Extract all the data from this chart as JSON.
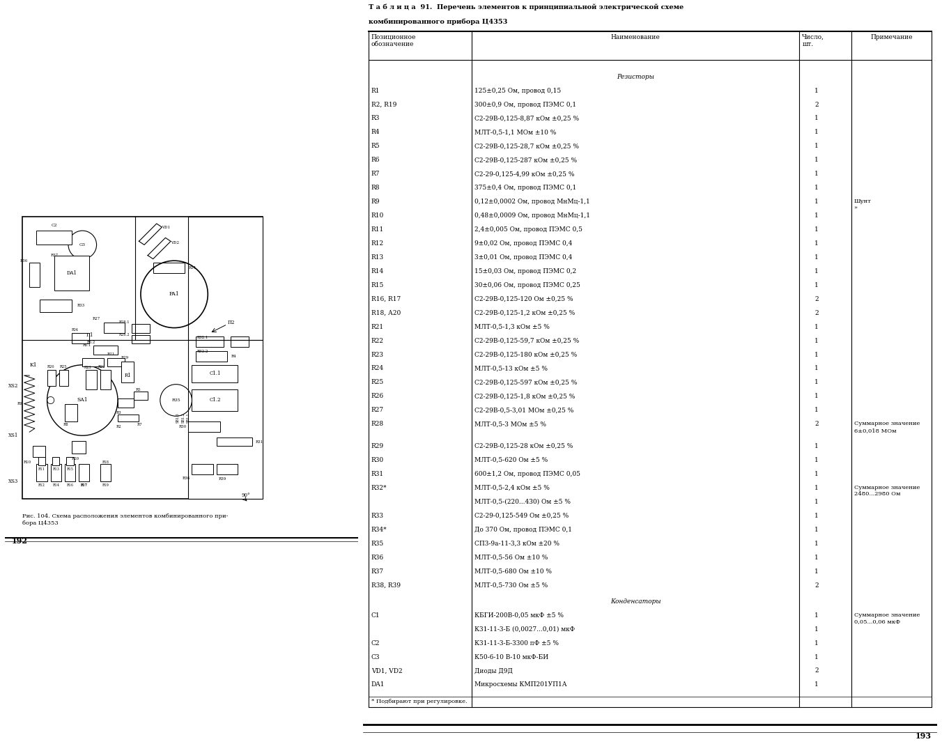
{
  "bg_color": "#ffffff",
  "title_line1": "Т а б л и ц а  91.  Перечень элементов к принципиальной электрической схеме",
  "title_line2": "комбинированного прибора Ц4353",
  "col_headers": [
    "Позиционное\nобозначение",
    "Наименование",
    "Число,\nшт.",
    "Примечание"
  ],
  "left_caption": "Рис. 104. Схема расположения элементов комбинированного при-\nбора Ц4353",
  "footnote": "* Подбирают при регулировке.",
  "page_left": "192",
  "page_right": "193",
  "table_rows": [
    {
      "pos": "",
      "name": "Резисторы",
      "qty": "",
      "note": "",
      "type": "section"
    },
    {
      "pos": "R1",
      "name": "125±0,25 Ом, провод 0,15",
      "qty": "1",
      "note": "",
      "type": "data"
    },
    {
      "pos": "R2, R19",
      "name": "300±0,9 Ом, провод ПЭМС 0,1",
      "qty": "2",
      "note": "",
      "type": "data"
    },
    {
      "pos": "R3",
      "name": "С2-29В-0,125-8,87 кОм ±0,25 %",
      "qty": "1",
      "note": "",
      "type": "data"
    },
    {
      "pos": "R4",
      "name": "МЛТ-0,5-1,1 МОм ±10 %",
      "qty": "1",
      "note": "",
      "type": "data"
    },
    {
      "pos": "R5",
      "name": "С2-29В-0,125-28,7 кОм ±0,25 %",
      "qty": "1",
      "note": "",
      "type": "data"
    },
    {
      "pos": "R6",
      "name": "С2-29В-0,125-287 кОм ±0,25 %",
      "qty": "1",
      "note": "",
      "type": "data"
    },
    {
      "pos": "R7",
      "name": "С2-29-0,125-4,99 кОм ±0,25 %",
      "qty": "1",
      "note": "",
      "type": "data"
    },
    {
      "pos": "R8",
      "name": "375±0,4 Ом, провод ПЭМС 0,1",
      "qty": "1",
      "note": "",
      "type": "data"
    },
    {
      "pos": "R9",
      "name": "0,12±0,0002 Ом, провод МнМц-1,1",
      "qty": "1",
      "note": "Шунт\n»",
      "type": "data"
    },
    {
      "pos": "R10",
      "name": "0,48±0,0009 Ом, провод МнМц-1,1",
      "qty": "1",
      "note": "",
      "type": "data"
    },
    {
      "pos": "R11",
      "name": "2,4±0,005 Ом, провод ПЭМС 0,5",
      "qty": "1",
      "note": "",
      "type": "data"
    },
    {
      "pos": "R12",
      "name": "9±0,02 Ом, провод ПЭМС 0,4",
      "qty": "1",
      "note": "",
      "type": "data"
    },
    {
      "pos": "R13",
      "name": "3±0,01 Ом, провод ПЭМС 0,4",
      "qty": "1",
      "note": "",
      "type": "data"
    },
    {
      "pos": "R14",
      "name": "15±0,03 Ом, провод ПЭМС 0,2",
      "qty": "1",
      "note": "",
      "type": "data"
    },
    {
      "pos": "R15",
      "name": "30±0,06 Ом, провод ПЭМС 0,25",
      "qty": "1",
      "note": "",
      "type": "data"
    },
    {
      "pos": "R16, R17",
      "name": "С2-29В-0,125-120 Ом ±0,25 %",
      "qty": "2",
      "note": "",
      "type": "data"
    },
    {
      "pos": "R18, А20",
      "name": "С2-29В-0,125-1,2 кОм ±0,25 %",
      "qty": "2",
      "note": "",
      "type": "data"
    },
    {
      "pos": "R21",
      "name": "МЛТ-0,5-1,3 кОм ±5 %",
      "qty": "1",
      "note": "",
      "type": "data"
    },
    {
      "pos": "R22",
      "name": "С2-29В-0,125-59,7 кОм ±0,25 %",
      "qty": "1",
      "note": "",
      "type": "data"
    },
    {
      "pos": "R23",
      "name": "С2-29В-0,125-180 кОм ±0,25 %",
      "qty": "1",
      "note": "",
      "type": "data"
    },
    {
      "pos": "R24",
      "name": "МЛТ-0,5-13 кОм ±5 %",
      "qty": "1",
      "note": "",
      "type": "data"
    },
    {
      "pos": "R25",
      "name": "С2-29В-0,125-597 кОм ±0,25 %",
      "qty": "1",
      "note": "",
      "type": "data"
    },
    {
      "pos": "R26",
      "name": "С2-29В-0,125-1,8 кОм ±0,25 %",
      "qty": "1",
      "note": "",
      "type": "data"
    },
    {
      "pos": "R27",
      "name": "С2-29В-0,5-3,01 МОм ±0,25 %",
      "qty": "1",
      "note": "",
      "type": "data"
    },
    {
      "pos": "R28",
      "name": "МЛТ-0,5-3 МОм ±5 %",
      "qty": "2",
      "note": "Суммарное значение\n6±0,018 МОм",
      "type": "data"
    },
    {
      "pos": "",
      "name": "",
      "qty": "",
      "note": "",
      "type": "spacer"
    },
    {
      "pos": "R29",
      "name": "С2-29В-0,125-28 кОм ±0,25 %",
      "qty": "1",
      "note": "",
      "type": "data"
    },
    {
      "pos": "R30",
      "name": "МЛТ-0,5-620 Ом ±5 %",
      "qty": "1",
      "note": "",
      "type": "data"
    },
    {
      "pos": "R31",
      "name": "600±1,2 Ом, провод ПЭМС 0,05",
      "qty": "1",
      "note": "",
      "type": "data"
    },
    {
      "pos": "R32*",
      "name": "МЛТ-0,5-2,4 кОм ±5 %",
      "qty": "1",
      "note": "Суммарное значение\n2480...2980 Ом",
      "type": "data"
    },
    {
      "pos": "",
      "name": "МЛТ-0,5-(220...430) Ом ±5 %",
      "qty": "1",
      "note": "",
      "type": "data"
    },
    {
      "pos": "R33",
      "name": "С2-29-0,125-549 Ом ±0,25 %",
      "qty": "1",
      "note": "",
      "type": "data"
    },
    {
      "pos": "R34*",
      "name": "До 370 Ом, провод ПЭМС 0,1",
      "qty": "1",
      "note": "",
      "type": "data"
    },
    {
      "pos": "R35",
      "name": "СП3-9а-11-3,3 кОм ±20 %",
      "qty": "1",
      "note": "",
      "type": "data"
    },
    {
      "pos": "R36",
      "name": "МЛТ-0,5-56 Ом ±10 %",
      "qty": "1",
      "note": "",
      "type": "data"
    },
    {
      "pos": "R37",
      "name": "МЛТ-0,5-680 Ом ±10 %",
      "qty": "1",
      "note": "",
      "type": "data"
    },
    {
      "pos": "R38, R39",
      "name": "МЛТ-0,5-730 Ом ±5 %",
      "qty": "2",
      "note": "",
      "type": "data"
    },
    {
      "pos": "",
      "name": "Конденсаторы",
      "qty": "",
      "note": "",
      "type": "section"
    },
    {
      "pos": "C1",
      "name": "КБГИ-200В-0,05 мкФ ±5 %",
      "qty": "1",
      "note": "Суммарное значение\n0,05...0,06 мкФ",
      "type": "data"
    },
    {
      "pos": "",
      "name": "К31-11-3-Б (0,0027...0,01) мкФ",
      "qty": "1",
      "note": "",
      "type": "data"
    },
    {
      "pos": "C2",
      "name": "К31-11-3-Б-3300 пФ ±5 %",
      "qty": "1",
      "note": "",
      "type": "data"
    },
    {
      "pos": "C3",
      "name": "К50-6-10 В-10 мкФ-БИ",
      "qty": "1",
      "note": "",
      "type": "data"
    },
    {
      "pos": "VD1, VD2",
      "name": "Диоды Д9Д",
      "qty": "2",
      "note": "",
      "type": "data"
    },
    {
      "pos": "DA1",
      "name": "Микросхемы КМП201УП1А",
      "qty": "1",
      "note": "",
      "type": "data"
    }
  ]
}
